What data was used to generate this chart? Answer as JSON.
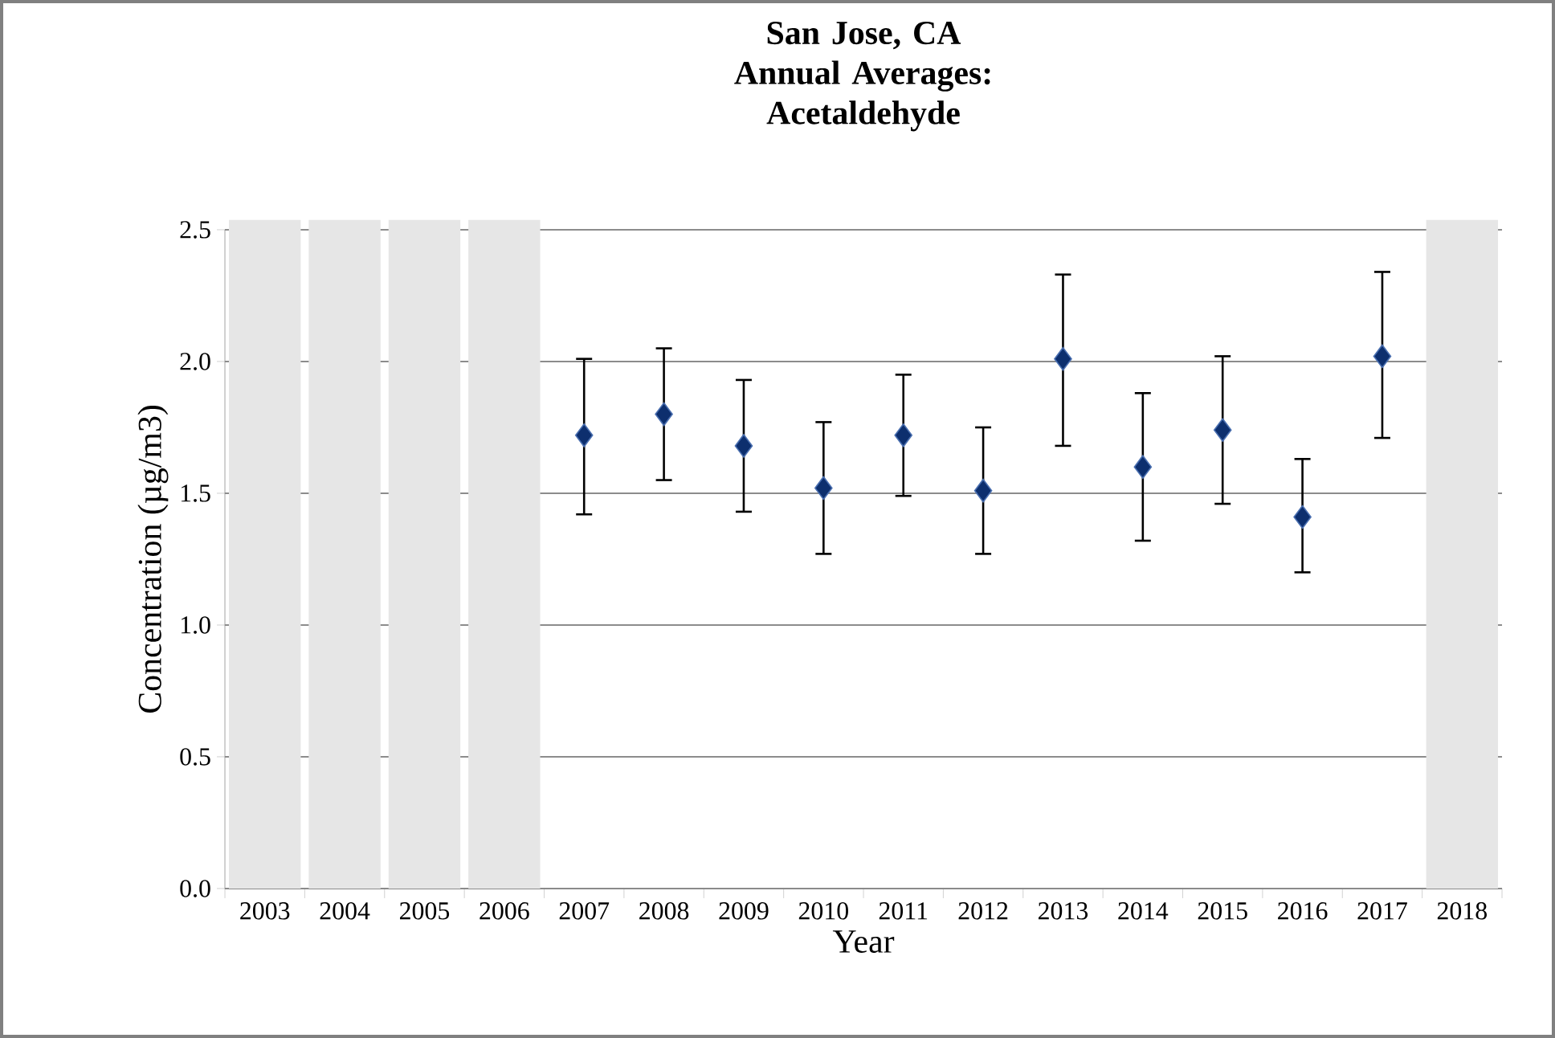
{
  "chart_data": {
    "type": "scatter",
    "title": "San Jose, CA",
    "subtitle": "Annual Averages: Acetaldehyde",
    "xlabel": "Year",
    "ylabel": "Concentration (µg/m3)",
    "categories": [
      "2003",
      "2004",
      "2005",
      "2006",
      "2007",
      "2008",
      "2009",
      "2010",
      "2011",
      "2012",
      "2013",
      "2014",
      "2015",
      "2016",
      "2017",
      "2018"
    ],
    "series": [
      {
        "color": "#0d2f6e",
        "values": [
          null,
          null,
          null,
          null,
          1.72,
          1.8,
          1.68,
          1.52,
          1.72,
          1.51,
          2.01,
          1.6,
          1.74,
          1.41,
          2.02,
          null
        ],
        "errors": [
          null,
          null,
          null,
          null,
          [
            1.42,
            2.01
          ],
          [
            1.55,
            2.05
          ],
          [
            1.43,
            1.93
          ],
          [
            1.27,
            1.77
          ],
          [
            1.49,
            1.95
          ],
          [
            1.27,
            1.75
          ],
          [
            1.68,
            2.33
          ],
          [
            1.32,
            1.88
          ],
          [
            1.46,
            2.02
          ],
          [
            1.2,
            1.63
          ],
          [
            1.71,
            2.34
          ],
          null
        ]
      }
    ],
    "ylim": [
      0,
      2.5
    ],
    "yticks": [
      {
        "value": 0,
        "label": "0.0"
      },
      {
        "value": 0.5,
        "label": "0.5"
      },
      {
        "value": 1,
        "label": "1.0"
      },
      {
        "value": 1.5,
        "label": "1.5"
      },
      {
        "value": 2,
        "label": "2.0"
      },
      {
        "value": 2.5,
        "label": "2.5"
      }
    ],
    "grid": "y",
    "marker": "diamond",
    "bands": [
      {
        "axis": "x",
        "from": "2003",
        "to": "2003",
        "color": "#e6e6e6"
      },
      {
        "axis": "x",
        "from": "2004",
        "to": "2004",
        "color": "#e6e6e6"
      },
      {
        "axis": "x",
        "from": "2005",
        "to": "2005",
        "color": "#e6e6e6"
      },
      {
        "axis": "x",
        "from": "2006",
        "to": "2006",
        "color": "#e6e6e6"
      },
      {
        "axis": "x",
        "from": "2018",
        "to": "2018",
        "color": "#e6e6e6"
      }
    ]
  }
}
